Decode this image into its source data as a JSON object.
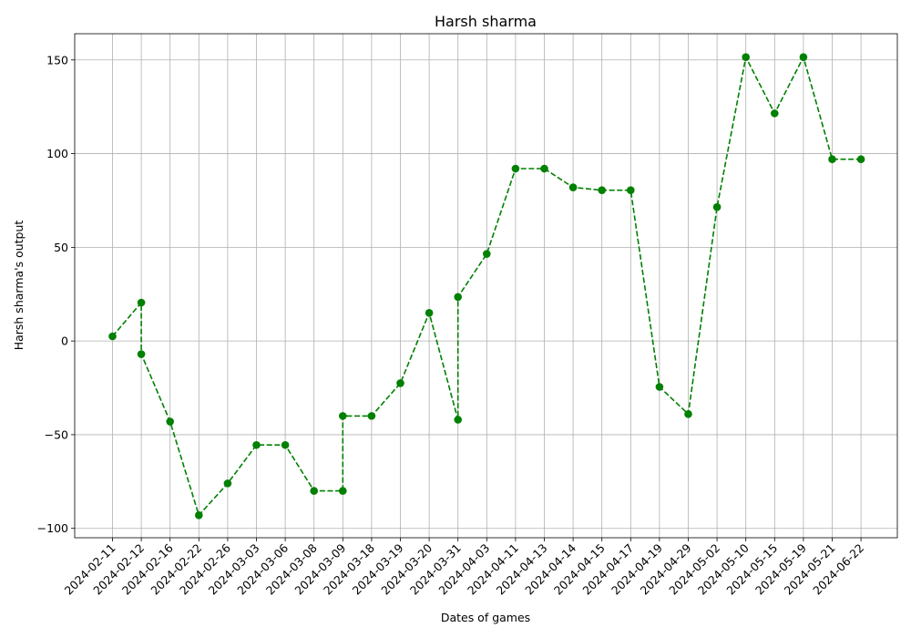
{
  "chart_data": {
    "type": "line",
    "title": "Harsh sharma",
    "xlabel": "Dates of games",
    "ylabel": "Harsh sharma's output",
    "ylim": [
      -105,
      164
    ],
    "yticks": [
      -100,
      -50,
      0,
      50,
      100,
      150
    ],
    "ytick_labels": [
      "−100",
      "−50",
      "0",
      "50",
      "100",
      "150"
    ],
    "grid": true,
    "x_categories": [
      "2024-02-11",
      "2024-02-12",
      "2024-02-16",
      "2024-02-22",
      "2024-02-26",
      "2024-03-03",
      "2024-03-06",
      "2024-03-08",
      "2024-03-09",
      "2024-03-18",
      "2024-03-19",
      "2024-03-20",
      "2024-03-31",
      "2024-04-03",
      "2024-04-11",
      "2024-04-13",
      "2024-04-14",
      "2024-04-15",
      "2024-04-17",
      "2024-04-19",
      "2024-04-29",
      "2024-05-02",
      "2024-05-10",
      "2024-05-15",
      "2024-05-19",
      "2024-05-21",
      "2024-06-22"
    ],
    "series": [
      {
        "color": "#008000",
        "line_style": "dashed",
        "marker": "circle",
        "points": [
          {
            "x": "2024-02-11",
            "y": 2.5
          },
          {
            "x": "2024-02-12",
            "y": 20.5
          },
          {
            "x": "2024-02-12",
            "y": -7
          },
          {
            "x": "2024-02-16",
            "y": -43
          },
          {
            "x": "2024-02-22",
            "y": -93
          },
          {
            "x": "2024-02-26",
            "y": -76
          },
          {
            "x": "2024-03-03",
            "y": -55.5
          },
          {
            "x": "2024-03-06",
            "y": -55.5
          },
          {
            "x": "2024-03-08",
            "y": -80
          },
          {
            "x": "2024-03-09",
            "y": -80
          },
          {
            "x": "2024-03-09",
            "y": -40
          },
          {
            "x": "2024-03-18",
            "y": -40
          },
          {
            "x": "2024-03-19",
            "y": -22.5
          },
          {
            "x": "2024-03-20",
            "y": 15
          },
          {
            "x": "2024-03-31",
            "y": -42
          },
          {
            "x": "2024-03-31",
            "y": 23.5
          },
          {
            "x": "2024-04-03",
            "y": 46.5
          },
          {
            "x": "2024-04-11",
            "y": 92
          },
          {
            "x": "2024-04-13",
            "y": 92
          },
          {
            "x": "2024-04-14",
            "y": 82
          },
          {
            "x": "2024-04-15",
            "y": 80.5
          },
          {
            "x": "2024-04-17",
            "y": 80.5
          },
          {
            "x": "2024-04-19",
            "y": -24.5
          },
          {
            "x": "2024-04-29",
            "y": -39
          },
          {
            "x": "2024-05-02",
            "y": 71.5
          },
          {
            "x": "2024-05-10",
            "y": 151.5
          },
          {
            "x": "2024-05-15",
            "y": 121.5
          },
          {
            "x": "2024-05-19",
            "y": 151.5
          },
          {
            "x": "2024-05-21",
            "y": 97
          },
          {
            "x": "2024-06-22",
            "y": 97
          }
        ]
      }
    ]
  }
}
